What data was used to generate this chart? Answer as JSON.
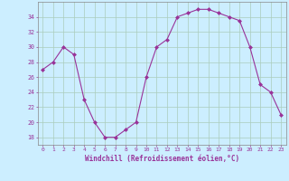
{
  "x": [
    0,
    1,
    2,
    3,
    4,
    5,
    6,
    7,
    8,
    9,
    10,
    11,
    12,
    13,
    14,
    15,
    16,
    17,
    18,
    19,
    20,
    21,
    22,
    23
  ],
  "y": [
    27,
    28,
    30,
    29,
    23,
    20,
    18,
    18,
    19,
    20,
    26,
    30,
    31,
    34,
    34.5,
    35,
    35,
    34.5,
    34,
    33.5,
    30,
    25,
    24,
    21
  ],
  "line_color": "#993399",
  "marker_color": "#993399",
  "bg_color": "#cceeff",
  "grid_color": "#aaccbb",
  "xlabel": "Windchill (Refroidissement éolien,°C)",
  "xlabel_color": "#993399",
  "ylabel_ticks": [
    18,
    20,
    22,
    24,
    26,
    28,
    30,
    32,
    34
  ],
  "xlim": [
    -0.5,
    23.5
  ],
  "ylim": [
    17,
    36
  ],
  "xticks": [
    0,
    1,
    2,
    3,
    4,
    5,
    6,
    7,
    8,
    9,
    10,
    11,
    12,
    13,
    14,
    15,
    16,
    17,
    18,
    19,
    20,
    21,
    22,
    23
  ],
  "title": ""
}
